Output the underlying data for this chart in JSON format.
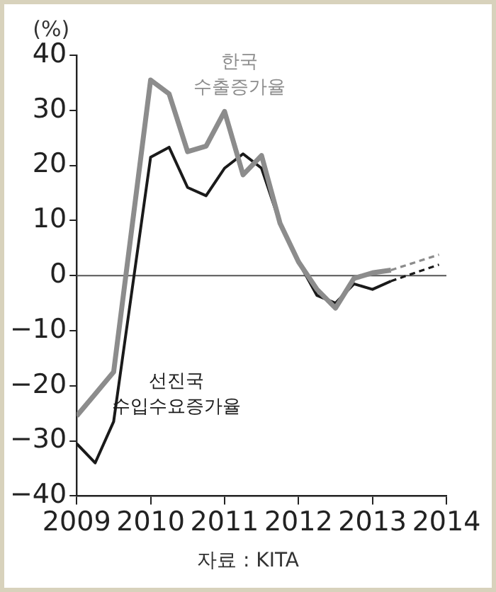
{
  "chart_data": {
    "type": "line",
    "ylabel": "(%)",
    "xlim": [
      2009,
      2014
    ],
    "xticks": [
      2009,
      2010,
      2011,
      2012,
      2013,
      2014
    ],
    "ylim": [
      -40,
      40
    ],
    "yticks": [
      -40,
      -30,
      -20,
      -10,
      0,
      10,
      20,
      30,
      40
    ],
    "grid": false,
    "legend": false,
    "marker": "none",
    "series": [
      {
        "name": "한국 수출증가율",
        "color": "#8c8c8c",
        "line_style": "solid",
        "x": [
          2009,
          2009.25,
          2009.5,
          2010,
          2010.25,
          2010.5,
          2010.75,
          2011,
          2011.25,
          2011.5,
          2011.75,
          2012,
          2012.25,
          2012.5,
          2012.75,
          2013,
          2013.25
        ],
        "values": [
          -25.5,
          -21.5,
          -17.5,
          35.5,
          33,
          22.5,
          23.5,
          29.8,
          18.3,
          21.8,
          9.5,
          2.5,
          -2.5,
          -5.9,
          -0.5,
          0.5,
          1
        ]
      },
      {
        "name": "선진국 수입수요증가율",
        "color": "#1a1a1a",
        "line_style": "solid",
        "x": [
          2009,
          2009.25,
          2009.5,
          2010,
          2010.25,
          2010.5,
          2010.75,
          2011,
          2011.25,
          2011.5,
          2011.75,
          2012,
          2012.25,
          2012.5,
          2012.75,
          2013,
          2013.25
        ],
        "values": [
          -30.5,
          -34,
          -26.5,
          21.5,
          23.3,
          16,
          14.5,
          19.5,
          22.1,
          19.5,
          9.5,
          2.5,
          -3.6,
          -5,
          -1.5,
          -2.5,
          -1
        ]
      },
      {
        "color": "#8c8c8c",
        "line_style": "dashed",
        "x": [
          2013.25,
          2013.9
        ],
        "values": [
          1,
          3.8
        ]
      },
      {
        "color": "#1a1a1a",
        "line_style": "dashed",
        "x": [
          2013.25,
          2013.9
        ],
        "values": [
          -1,
          2
        ]
      }
    ],
    "ref_lines": [
      {
        "axis": "y",
        "value": 0,
        "color": "#555555"
      }
    ],
    "annotations": [
      "자료 : KITA"
    ]
  }
}
